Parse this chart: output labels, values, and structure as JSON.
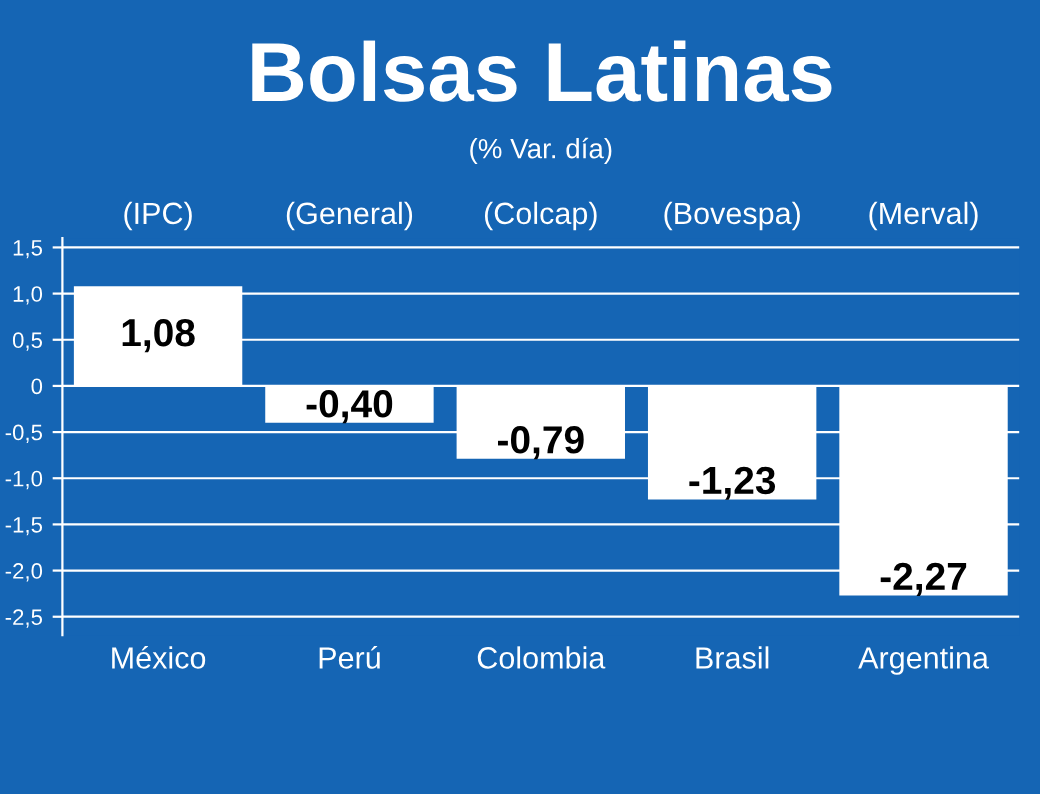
{
  "chart_data": {
    "type": "bar",
    "title": "Bolsas Latinas",
    "subtitle": "(% Var. día)",
    "categories": [
      "México",
      "Perú",
      "Colombia",
      "Brasil",
      "Argentina"
    ],
    "values": [
      1.08,
      -0.4,
      -0.79,
      -1.23,
      -2.27
    ],
    "value_labels": [
      "1,08",
      "-0,40",
      "-0,79",
      "-1,23",
      "-2,27"
    ],
    "color": "#ffffff",
    "annotations": [
      "(IPC)",
      "(General)",
      "(Colcap)",
      "(Bovespa)",
      "(Merval)"
    ],
    "ylim": [
      -2.7,
      1.6
    ],
    "yticks": [
      {
        "value": 1.5,
        "label": "1,5"
      },
      {
        "value": 1.0,
        "label": "1,0"
      },
      {
        "value": 0.5,
        "label": "0,5"
      },
      0,
      {
        "value": -0.5,
        "label": "-0,5"
      },
      {
        "value": -1.0,
        "label": "-1,0"
      },
      {
        "value": -1.5,
        "label": "-1,5"
      },
      {
        "value": -2.0,
        "label": "-2,0"
      },
      {
        "value": -2.5,
        "label": "-2,5"
      }
    ],
    "grid": "y",
    "legend": false
  }
}
